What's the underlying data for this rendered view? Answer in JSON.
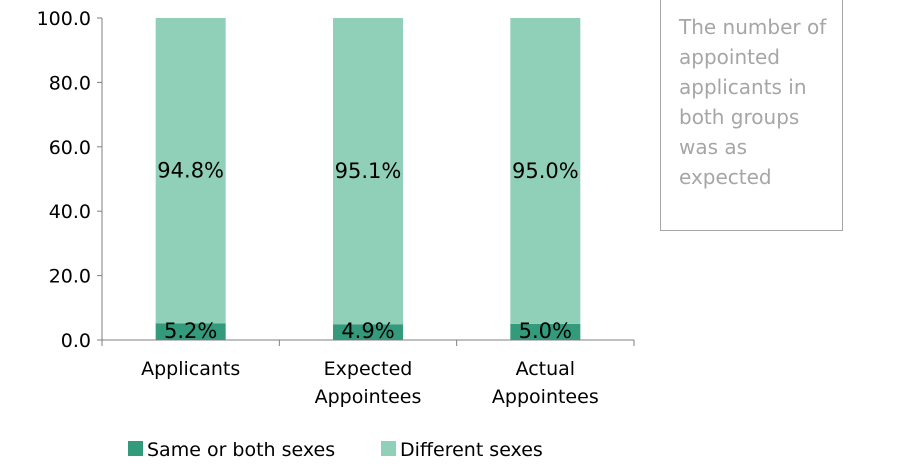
{
  "chart_data": {
    "type": "bar",
    "stacked": true,
    "categories": [
      "Applicants",
      "Expected\nAppointees",
      "Actual\nAppointees"
    ],
    "series": [
      {
        "name": "Same or both sexes",
        "values": [
          5.2,
          4.9,
          5.0
        ],
        "labels": [
          "5.2%",
          "4.9%",
          "5.0%"
        ],
        "color": "#339a7b"
      },
      {
        "name": "Different sexes",
        "values": [
          94.8,
          95.1,
          95.0
        ],
        "labels": [
          "94.8%",
          "95.1%",
          "95.0%"
        ],
        "color": "#90d0b8"
      }
    ],
    "ylim": [
      0,
      100
    ],
    "yticks": [
      0,
      20,
      40,
      60,
      80,
      100
    ],
    "ytick_labels": [
      "0.0",
      "20.0",
      "40.0",
      "60.0",
      "80.0",
      "100.0"
    ],
    "grid": false,
    "legend_position": "bottom"
  },
  "annotation": {
    "text": "The number of appointed applicants in both groups was as expected"
  }
}
